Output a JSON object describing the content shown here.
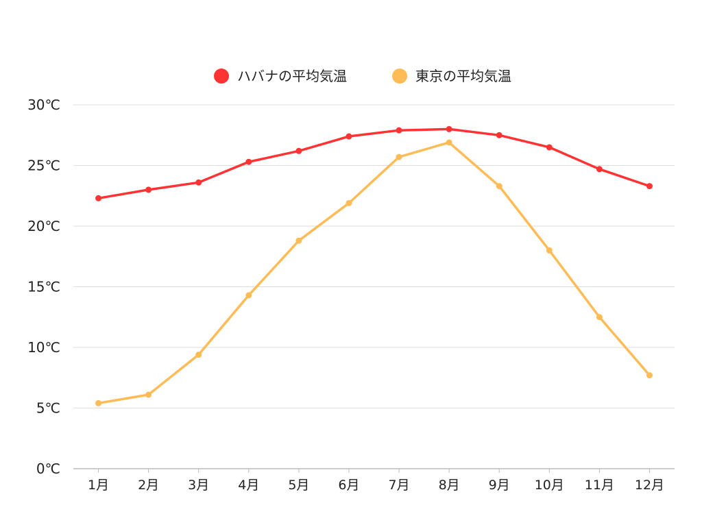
{
  "chart_data": {
    "type": "line",
    "categories": [
      "1月",
      "2月",
      "3月",
      "4月",
      "5月",
      "6月",
      "7月",
      "8月",
      "9月",
      "10月",
      "11月",
      "12月"
    ],
    "series": [
      {
        "name": "ハバナの平均気温",
        "color": "#ff3333",
        "values": [
          22.3,
          23.0,
          23.6,
          25.3,
          26.2,
          27.4,
          27.9,
          28.0,
          27.5,
          26.5,
          24.7,
          23.3
        ]
      },
      {
        "name": "東京の平均気温",
        "color": "#ffbb55",
        "values": [
          5.4,
          6.1,
          9.4,
          14.3,
          18.8,
          21.9,
          25.7,
          26.9,
          23.3,
          18.0,
          12.5,
          7.7
        ]
      }
    ],
    "ylim": [
      0,
      30
    ],
    "yticks": [
      0,
      5,
      10,
      15,
      20,
      25,
      30
    ],
    "ytick_labels": [
      "0℃",
      "5℃",
      "10℃",
      "15℃",
      "20℃",
      "25℃",
      "30℃"
    ],
    "grid": true,
    "legend_position": "top-center",
    "title": "",
    "xlabel": "",
    "ylabel": ""
  }
}
